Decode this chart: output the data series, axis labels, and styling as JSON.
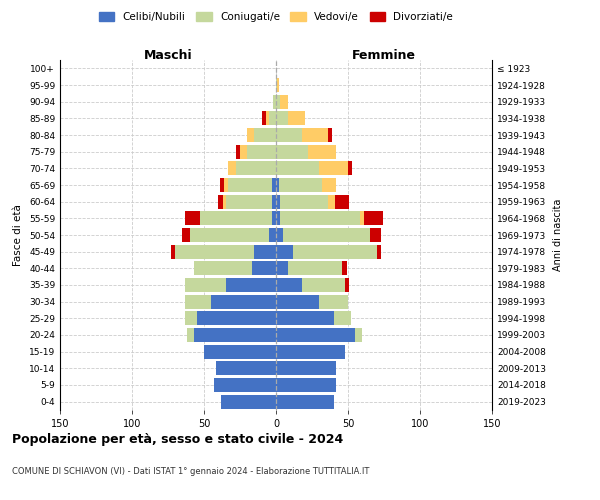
{
  "age_groups": [
    "0-4",
    "5-9",
    "10-14",
    "15-19",
    "20-24",
    "25-29",
    "30-34",
    "35-39",
    "40-44",
    "45-49",
    "50-54",
    "55-59",
    "60-64",
    "65-69",
    "70-74",
    "75-79",
    "80-84",
    "85-89",
    "90-94",
    "95-99",
    "100+"
  ],
  "birth_years": [
    "2019-2023",
    "2014-2018",
    "2009-2013",
    "2004-2008",
    "1999-2003",
    "1994-1998",
    "1989-1993",
    "1984-1988",
    "1979-1983",
    "1974-1978",
    "1969-1973",
    "1964-1968",
    "1959-1963",
    "1954-1958",
    "1949-1953",
    "1944-1948",
    "1939-1943",
    "1934-1938",
    "1929-1933",
    "1924-1928",
    "≤ 1923"
  ],
  "maschi": {
    "celibi": [
      38,
      43,
      42,
      50,
      57,
      55,
      45,
      35,
      17,
      15,
      5,
      3,
      3,
      3,
      0,
      0,
      0,
      0,
      0,
      0,
      0
    ],
    "coniugati": [
      0,
      0,
      0,
      0,
      5,
      8,
      18,
      28,
      40,
      55,
      55,
      50,
      32,
      30,
      28,
      20,
      15,
      5,
      2,
      0,
      0
    ],
    "vedovi": [
      0,
      0,
      0,
      0,
      0,
      0,
      0,
      0,
      0,
      0,
      0,
      0,
      2,
      3,
      5,
      5,
      5,
      2,
      0,
      0,
      0
    ],
    "divorziati": [
      0,
      0,
      0,
      0,
      0,
      0,
      0,
      0,
      0,
      3,
      5,
      10,
      3,
      3,
      0,
      3,
      0,
      3,
      0,
      0,
      0
    ]
  },
  "femmine": {
    "nubili": [
      40,
      42,
      42,
      48,
      55,
      40,
      30,
      18,
      8,
      12,
      5,
      3,
      3,
      2,
      0,
      0,
      0,
      0,
      0,
      0,
      0
    ],
    "coniugate": [
      0,
      0,
      0,
      0,
      5,
      12,
      20,
      30,
      38,
      58,
      60,
      55,
      33,
      30,
      30,
      22,
      18,
      8,
      3,
      1,
      0
    ],
    "vedove": [
      0,
      0,
      0,
      0,
      0,
      0,
      0,
      0,
      0,
      0,
      0,
      3,
      5,
      10,
      20,
      20,
      18,
      12,
      5,
      1,
      0
    ],
    "divorziate": [
      0,
      0,
      0,
      0,
      0,
      0,
      0,
      3,
      3,
      3,
      8,
      13,
      10,
      0,
      3,
      0,
      3,
      0,
      0,
      0,
      0
    ]
  },
  "colors": {
    "celibi": "#4472C4",
    "coniugati": "#C5D89D",
    "vedovi": "#FFCC66",
    "divorziati": "#CC0000"
  },
  "xlim": 150,
  "title": "Popolazione per età, sesso e stato civile - 2024",
  "subtitle": "COMUNE DI SCHIAVON (VI) - Dati ISTAT 1° gennaio 2024 - Elaborazione TUTTITALIA.IT",
  "ylabel_left": "Fasce di età",
  "ylabel_right": "Anni di nascita",
  "xlabel_left": "Maschi",
  "xlabel_right": "Femmine",
  "legend_labels": [
    "Celibi/Nubili",
    "Coniugati/e",
    "Vedovi/e",
    "Divorziati/e"
  ],
  "bg_color": "#ffffff",
  "grid_color": "#cccccc"
}
